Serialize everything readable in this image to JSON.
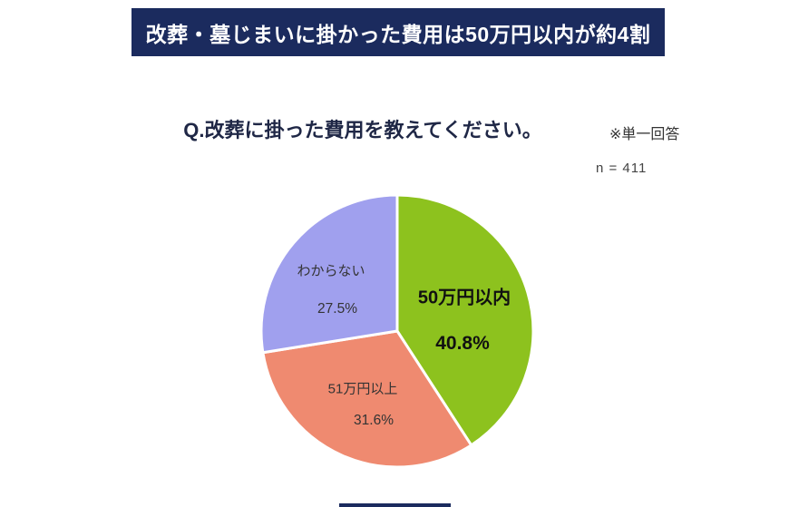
{
  "header": {
    "title": "改葬・墓じまいに掛かった費用は50万円以内が約4割",
    "bg_color": "#1b2b5e",
    "text_color": "#ffffff"
  },
  "question": {
    "title": "Q.改葬に掛った費用を教えてください。",
    "note": "※単一回答",
    "sample_label": "n = 411"
  },
  "chart_data": {
    "type": "pie",
    "title": "Q.改葬に掛った費用を教えてください。",
    "n": 411,
    "start_angle_deg": -90,
    "direction": "clockwise",
    "slice_border_color": "#ffffff",
    "legend_position": "none",
    "slices": [
      {
        "label": "50万円以内",
        "value": 40.8,
        "value_label": "40.8%",
        "color": "#8dc21e",
        "emphasis": true
      },
      {
        "label": "51万円以上",
        "value": 31.6,
        "value_label": "31.6%",
        "color": "#ef8a70",
        "emphasis": false
      },
      {
        "label": "わからない",
        "value": 27.5,
        "value_label": "27.5%",
        "color": "#a0a0ee",
        "emphasis": false
      }
    ]
  }
}
